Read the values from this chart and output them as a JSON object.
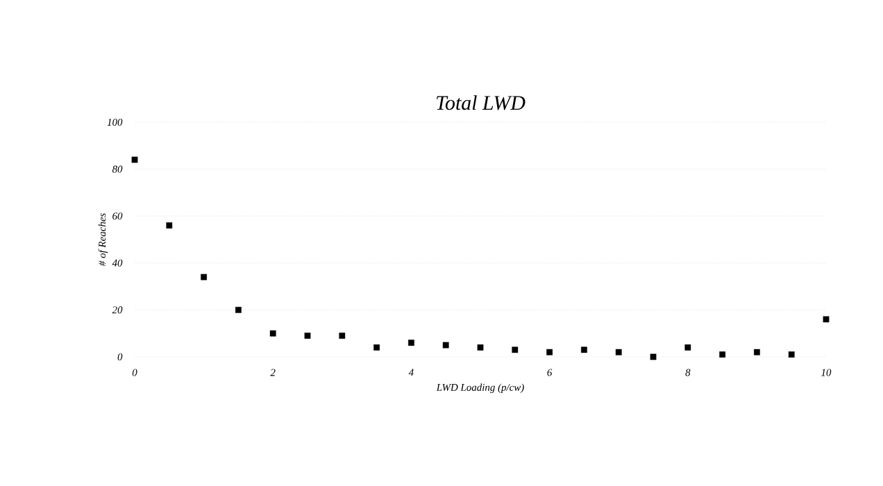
{
  "chart_data": {
    "type": "scatter",
    "title": "Total LWD",
    "xlabel": "LWD Loading (p/cw)",
    "ylabel": "# of Reaches",
    "x": [
      0,
      0.5,
      1,
      1.5,
      2,
      2.5,
      3,
      3.5,
      4,
      4.5,
      5,
      5.5,
      6,
      6.5,
      7,
      7.5,
      8,
      8.5,
      9,
      9.5,
      10
    ],
    "series": [
      {
        "color": "#000000",
        "values": [
          84,
          56,
          34,
          20,
          10,
          9,
          9,
          4,
          6,
          5,
          4,
          3,
          2,
          3,
          2,
          0,
          4,
          1,
          2,
          1,
          16
        ]
      }
    ],
    "xlim": [
      0,
      10
    ],
    "xticks": [
      0,
      2,
      4,
      6,
      8,
      10
    ],
    "ylim": [
      0,
      100
    ],
    "yticks": [
      0,
      20,
      40,
      60,
      80,
      100
    ],
    "grid": "y",
    "marker": "square"
  }
}
